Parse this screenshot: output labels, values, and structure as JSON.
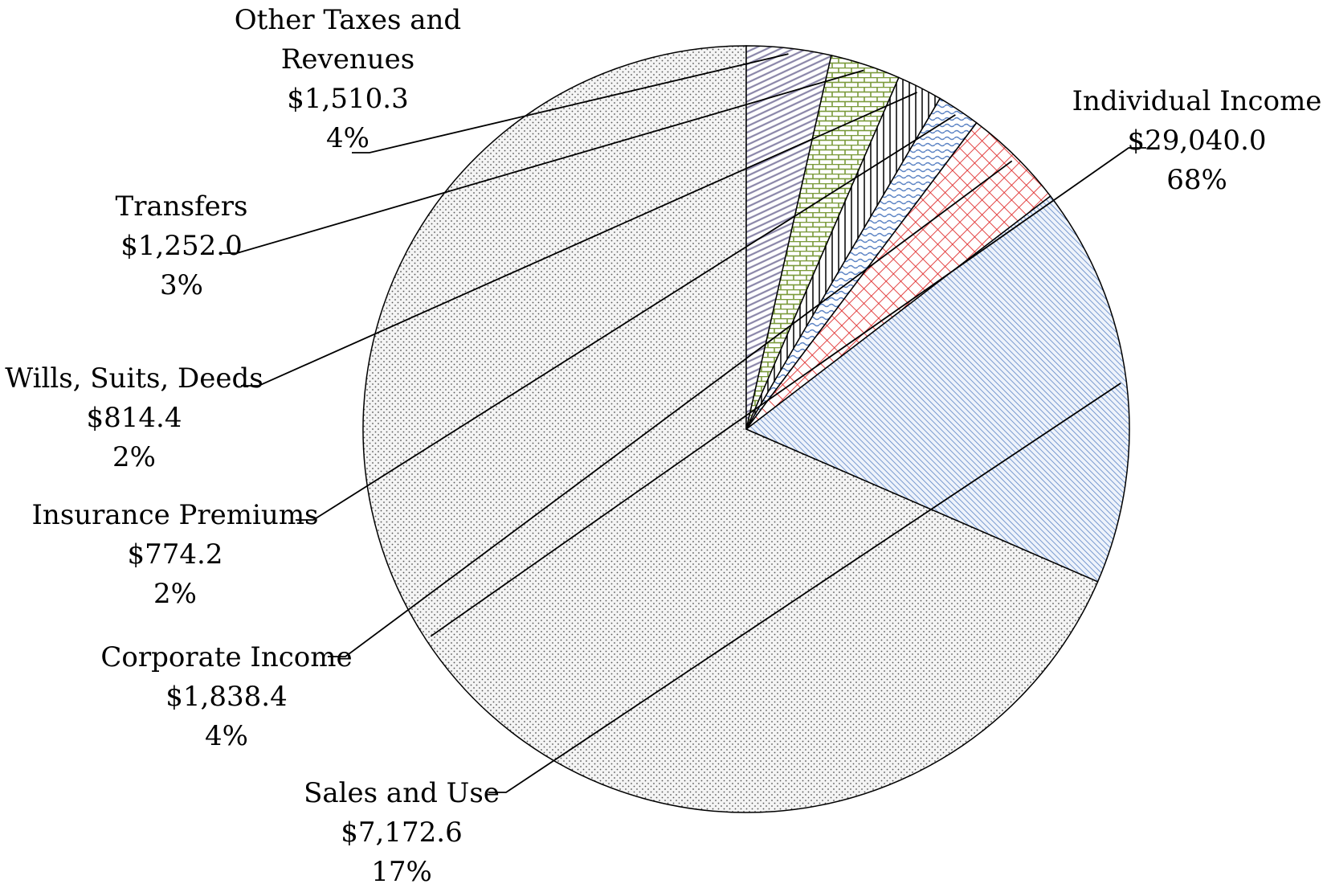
{
  "chart_data": {
    "type": "pie",
    "title": "",
    "start_angle_deg": 90,
    "direction": "counterclockwise",
    "slices": [
      {
        "name": "Individual Income",
        "value": 29040.0,
        "value_label": "$29,040.0",
        "percent_label": "68%",
        "pattern": "dots",
        "color": "#555555"
      },
      {
        "name": "Sales and Use",
        "value": 7172.6,
        "value_label": "$7,172.6",
        "percent_label": "17%",
        "pattern": "diagonal-blue",
        "color": "#5b83c4"
      },
      {
        "name": "Corporate Income",
        "value": 1838.4,
        "value_label": "$1,838.4",
        "percent_label": "4%",
        "pattern": "crosshatch-red",
        "color": "#e03030"
      },
      {
        "name": "Insurance Premiums",
        "value": 774.2,
        "value_label": "$774.2",
        "percent_label": "2%",
        "pattern": "wave-blue",
        "color": "#5b83c4"
      },
      {
        "name": "Wills, Suits, Deeds",
        "value": 814.4,
        "value_label": "$814.4",
        "percent_label": "2%",
        "pattern": "vertical-lines",
        "color": "#000000"
      },
      {
        "name": "Transfers",
        "value": 1252.0,
        "value_label": "$1,252.0",
        "percent_label": "3%",
        "pattern": "brick-green",
        "color": "#7a9a3a"
      },
      {
        "name": "Other Taxes and Revenues",
        "name_lines": [
          "Other Taxes and",
          "Revenues"
        ],
        "value": 1510.3,
        "value_label": "$1,510.3",
        "percent_label": "4%",
        "pattern": "stripes-purple",
        "color": "#8a86a8"
      }
    ]
  }
}
